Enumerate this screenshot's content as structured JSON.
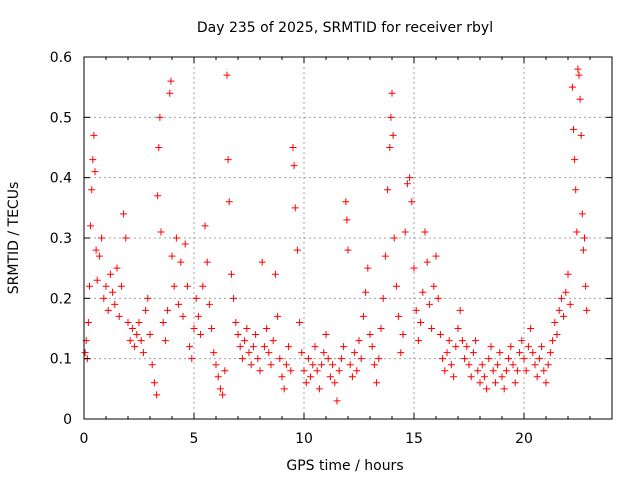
{
  "chart_data": {
    "type": "scatter",
    "title": "Day 235 of 2025, SRMTID for receiver rbyl",
    "xlabel": "GPS time / hours",
    "ylabel": "SRMTID / TECUs",
    "xlim": [
      0,
      24
    ],
    "ylim": [
      0,
      0.6
    ],
    "xticks": [
      0,
      5,
      10,
      15,
      20
    ],
    "yticks": [
      0,
      0.1,
      0.2,
      0.3,
      0.4,
      0.5,
      0.6
    ],
    "grid": true,
    "marker": "+",
    "color": "#ff0000",
    "series": [
      {
        "name": "SRMTID",
        "points": [
          [
            0.05,
            0.11
          ],
          [
            0.1,
            0.13
          ],
          [
            0.15,
            0.1
          ],
          [
            0.2,
            0.16
          ],
          [
            0.25,
            0.22
          ],
          [
            0.3,
            0.32
          ],
          [
            0.35,
            0.38
          ],
          [
            0.4,
            0.43
          ],
          [
            0.45,
            0.47
          ],
          [
            0.5,
            0.41
          ],
          [
            0.55,
            0.28
          ],
          [
            0.6,
            0.23
          ],
          [
            0.7,
            0.27
          ],
          [
            0.8,
            0.3
          ],
          [
            0.9,
            0.2
          ],
          [
            1.0,
            0.22
          ],
          [
            1.1,
            0.18
          ],
          [
            1.2,
            0.24
          ],
          [
            1.3,
            0.21
          ],
          [
            1.4,
            0.19
          ],
          [
            1.5,
            0.25
          ],
          [
            1.6,
            0.17
          ],
          [
            1.7,
            0.22
          ],
          [
            1.8,
            0.34
          ],
          [
            1.9,
            0.3
          ],
          [
            2.0,
            0.16
          ],
          [
            2.1,
            0.13
          ],
          [
            2.2,
            0.15
          ],
          [
            2.3,
            0.12
          ],
          [
            2.4,
            0.14
          ],
          [
            2.5,
            0.16
          ],
          [
            2.6,
            0.13
          ],
          [
            2.7,
            0.11
          ],
          [
            2.8,
            0.18
          ],
          [
            2.9,
            0.2
          ],
          [
            3.0,
            0.14
          ],
          [
            3.1,
            0.09
          ],
          [
            3.2,
            0.06
          ],
          [
            3.3,
            0.04
          ],
          [
            3.35,
            0.37
          ],
          [
            3.4,
            0.45
          ],
          [
            3.45,
            0.5
          ],
          [
            3.5,
            0.31
          ],
          [
            3.6,
            0.16
          ],
          [
            3.7,
            0.13
          ],
          [
            3.8,
            0.18
          ],
          [
            3.9,
            0.54
          ],
          [
            3.95,
            0.56
          ],
          [
            4.0,
            0.27
          ],
          [
            4.1,
            0.22
          ],
          [
            4.2,
            0.3
          ],
          [
            4.3,
            0.19
          ],
          [
            4.4,
            0.26
          ],
          [
            4.5,
            0.17
          ],
          [
            4.6,
            0.29
          ],
          [
            4.7,
            0.22
          ],
          [
            4.8,
            0.12
          ],
          [
            4.9,
            0.1
          ],
          [
            5.0,
            0.15
          ],
          [
            5.1,
            0.2
          ],
          [
            5.2,
            0.17
          ],
          [
            5.3,
            0.14
          ],
          [
            5.4,
            0.22
          ],
          [
            5.5,
            0.32
          ],
          [
            5.6,
            0.26
          ],
          [
            5.7,
            0.19
          ],
          [
            5.8,
            0.15
          ],
          [
            5.9,
            0.11
          ],
          [
            6.0,
            0.09
          ],
          [
            6.1,
            0.07
          ],
          [
            6.2,
            0.05
          ],
          [
            6.3,
            0.04
          ],
          [
            6.4,
            0.08
          ],
          [
            6.5,
            0.57
          ],
          [
            6.55,
            0.43
          ],
          [
            6.6,
            0.36
          ],
          [
            6.7,
            0.24
          ],
          [
            6.8,
            0.2
          ],
          [
            6.9,
            0.16
          ],
          [
            7.0,
            0.14
          ],
          [
            7.1,
            0.12
          ],
          [
            7.2,
            0.1
          ],
          [
            7.3,
            0.13
          ],
          [
            7.4,
            0.15
          ],
          [
            7.5,
            0.11
          ],
          [
            7.6,
            0.09
          ],
          [
            7.7,
            0.12
          ],
          [
            7.8,
            0.14
          ],
          [
            7.9,
            0.1
          ],
          [
            8.0,
            0.08
          ],
          [
            8.1,
            0.26
          ],
          [
            8.2,
            0.12
          ],
          [
            8.3,
            0.15
          ],
          [
            8.4,
            0.11
          ],
          [
            8.5,
            0.09
          ],
          [
            8.6,
            0.13
          ],
          [
            8.7,
            0.24
          ],
          [
            8.8,
            0.17
          ],
          [
            8.9,
            0.1
          ],
          [
            9.0,
            0.07
          ],
          [
            9.1,
            0.05
          ],
          [
            9.2,
            0.09
          ],
          [
            9.3,
            0.12
          ],
          [
            9.4,
            0.08
          ],
          [
            9.5,
            0.45
          ],
          [
            9.55,
            0.42
          ],
          [
            9.6,
            0.35
          ],
          [
            9.7,
            0.28
          ],
          [
            9.8,
            0.16
          ],
          [
            9.9,
            0.11
          ],
          [
            10.0,
            0.08
          ],
          [
            10.1,
            0.06
          ],
          [
            10.2,
            0.1
          ],
          [
            10.3,
            0.07
          ],
          [
            10.4,
            0.09
          ],
          [
            10.5,
            0.12
          ],
          [
            10.6,
            0.08
          ],
          [
            10.7,
            0.05
          ],
          [
            10.8,
            0.09
          ],
          [
            10.9,
            0.11
          ],
          [
            11.0,
            0.14
          ],
          [
            11.1,
            0.1
          ],
          [
            11.2,
            0.07
          ],
          [
            11.3,
            0.09
          ],
          [
            11.4,
            0.06
          ],
          [
            11.5,
            0.03
          ],
          [
            11.6,
            0.08
          ],
          [
            11.7,
            0.1
          ],
          [
            11.8,
            0.12
          ],
          [
            11.9,
            0.36
          ],
          [
            11.95,
            0.33
          ],
          [
            12.0,
            0.28
          ],
          [
            12.1,
            0.09
          ],
          [
            12.2,
            0.07
          ],
          [
            12.3,
            0.11
          ],
          [
            12.4,
            0.08
          ],
          [
            12.5,
            0.13
          ],
          [
            12.6,
            0.1
          ],
          [
            12.7,
            0.17
          ],
          [
            12.8,
            0.21
          ],
          [
            12.9,
            0.25
          ],
          [
            13.0,
            0.14
          ],
          [
            13.1,
            0.12
          ],
          [
            13.2,
            0.09
          ],
          [
            13.3,
            0.06
          ],
          [
            13.4,
            0.1
          ],
          [
            13.5,
            0.15
          ],
          [
            13.6,
            0.2
          ],
          [
            13.7,
            0.27
          ],
          [
            13.8,
            0.38
          ],
          [
            13.9,
            0.45
          ],
          [
            13.95,
            0.5
          ],
          [
            14.0,
            0.54
          ],
          [
            14.05,
            0.47
          ],
          [
            14.1,
            0.3
          ],
          [
            14.2,
            0.22
          ],
          [
            14.3,
            0.17
          ],
          [
            14.4,
            0.11
          ],
          [
            14.5,
            0.14
          ],
          [
            14.6,
            0.31
          ],
          [
            14.7,
            0.39
          ],
          [
            14.8,
            0.4
          ],
          [
            14.9,
            0.36
          ],
          [
            15.0,
            0.25
          ],
          [
            15.1,
            0.18
          ],
          [
            15.2,
            0.13
          ],
          [
            15.3,
            0.16
          ],
          [
            15.4,
            0.21
          ],
          [
            15.5,
            0.31
          ],
          [
            15.6,
            0.26
          ],
          [
            15.7,
            0.19
          ],
          [
            15.8,
            0.15
          ],
          [
            15.9,
            0.22
          ],
          [
            16.0,
            0.27
          ],
          [
            16.1,
            0.2
          ],
          [
            16.2,
            0.14
          ],
          [
            16.3,
            0.1
          ],
          [
            16.4,
            0.08
          ],
          [
            16.5,
            0.11
          ],
          [
            16.6,
            0.13
          ],
          [
            16.7,
            0.09
          ],
          [
            16.8,
            0.07
          ],
          [
            16.9,
            0.12
          ],
          [
            17.0,
            0.15
          ],
          [
            17.1,
            0.18
          ],
          [
            17.2,
            0.13
          ],
          [
            17.3,
            0.1
          ],
          [
            17.4,
            0.12
          ],
          [
            17.5,
            0.09
          ],
          [
            17.6,
            0.07
          ],
          [
            17.7,
            0.11
          ],
          [
            17.8,
            0.13
          ],
          [
            17.9,
            0.08
          ],
          [
            18.0,
            0.06
          ],
          [
            18.1,
            0.09
          ],
          [
            18.2,
            0.07
          ],
          [
            18.3,
            0.05
          ],
          [
            18.4,
            0.1
          ],
          [
            18.5,
            0.12
          ],
          [
            18.6,
            0.08
          ],
          [
            18.7,
            0.06
          ],
          [
            18.8,
            0.09
          ],
          [
            18.9,
            0.11
          ],
          [
            19.0,
            0.07
          ],
          [
            19.1,
            0.05
          ],
          [
            19.2,
            0.08
          ],
          [
            19.3,
            0.1
          ],
          [
            19.4,
            0.12
          ],
          [
            19.5,
            0.09
          ],
          [
            19.6,
            0.06
          ],
          [
            19.7,
            0.08
          ],
          [
            19.8,
            0.11
          ],
          [
            19.9,
            0.13
          ],
          [
            20.0,
            0.1
          ],
          [
            20.1,
            0.08
          ],
          [
            20.2,
            0.12
          ],
          [
            20.3,
            0.15
          ],
          [
            20.4,
            0.11
          ],
          [
            20.5,
            0.09
          ],
          [
            20.6,
            0.07
          ],
          [
            20.7,
            0.1
          ],
          [
            20.8,
            0.12
          ],
          [
            20.9,
            0.08
          ],
          [
            21.0,
            0.06
          ],
          [
            21.1,
            0.09
          ],
          [
            21.2,
            0.11
          ],
          [
            21.3,
            0.13
          ],
          [
            21.4,
            0.16
          ],
          [
            21.5,
            0.14
          ],
          [
            21.6,
            0.18
          ],
          [
            21.7,
            0.2
          ],
          [
            21.8,
            0.17
          ],
          [
            21.9,
            0.21
          ],
          [
            22.0,
            0.24
          ],
          [
            22.1,
            0.19
          ],
          [
            22.2,
            0.55
          ],
          [
            22.25,
            0.48
          ],
          [
            22.3,
            0.43
          ],
          [
            22.35,
            0.38
          ],
          [
            22.4,
            0.31
          ],
          [
            22.45,
            0.58
          ],
          [
            22.5,
            0.57
          ],
          [
            22.55,
            0.53
          ],
          [
            22.6,
            0.47
          ],
          [
            22.65,
            0.34
          ],
          [
            22.7,
            0.28
          ],
          [
            22.75,
            0.3
          ],
          [
            22.8,
            0.22
          ],
          [
            22.85,
            0.18
          ]
        ]
      }
    ]
  }
}
